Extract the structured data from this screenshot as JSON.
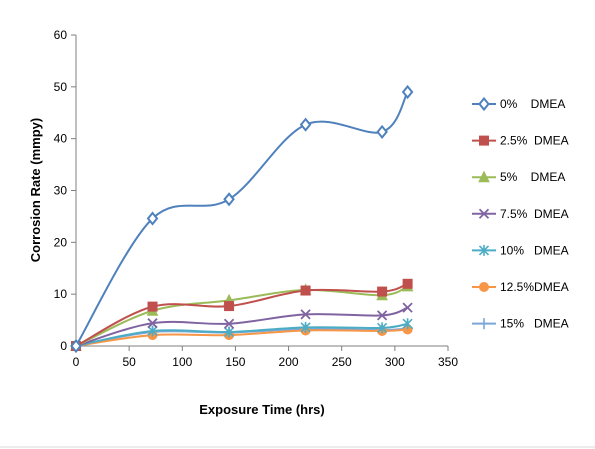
{
  "chart_data": {
    "type": "line",
    "xlabel": "Exposure Time (hrs)",
    "ylabel": "Corrosion Rate (mmpy)",
    "xlim": [
      0,
      350
    ],
    "ylim": [
      0,
      60
    ],
    "xticks": [
      0,
      50,
      100,
      150,
      200,
      250,
      300,
      350
    ],
    "yticks": [
      0,
      10,
      20,
      30,
      40,
      50,
      60
    ],
    "grid": false,
    "legend_position": "right",
    "x": [
      0,
      72,
      144,
      216,
      288,
      312
    ],
    "series": [
      {
        "name": "0%    DMEA",
        "color": "#4F81BD",
        "marker": "diamond",
        "values": [
          0,
          24.6,
          28.3,
          42.7,
          41.3,
          49.0
        ]
      },
      {
        "name": "2.5%  DMEA",
        "color": "#C0504D",
        "marker": "square",
        "values": [
          0,
          7.6,
          7.7,
          10.7,
          10.5,
          12.0
        ]
      },
      {
        "name": "5%    DMEA",
        "color": "#9BBB59",
        "marker": "triangle",
        "values": [
          0,
          6.8,
          8.8,
          10.8,
          9.8,
          11.5
        ]
      },
      {
        "name": "7.5%  DMEA",
        "color": "#8064A2",
        "marker": "x",
        "values": [
          0,
          4.4,
          4.3,
          6.1,
          5.9,
          7.4
        ]
      },
      {
        "name": "10%   DMEA",
        "color": "#4BACC6",
        "marker": "star",
        "values": [
          0,
          2.9,
          2.7,
          3.6,
          3.5,
          4.3
        ]
      },
      {
        "name": "12.5%DMEA",
        "color": "#F79646",
        "marker": "circle",
        "values": [
          0,
          2.1,
          2.1,
          3.0,
          2.9,
          3.2
        ]
      },
      {
        "name": "15%   DMEA",
        "color": "#7BA7D7",
        "marker": "plus",
        "values": [
          0,
          2.7,
          2.6,
          3.3,
          3.1,
          3.4
        ]
      }
    ]
  }
}
